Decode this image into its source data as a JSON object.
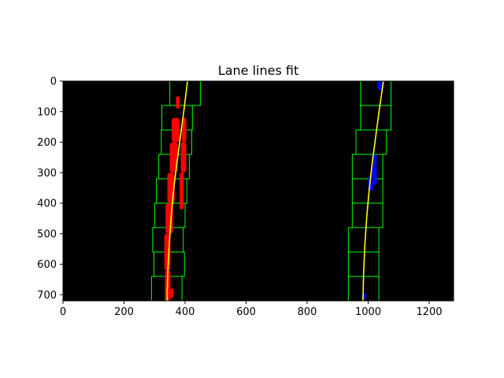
{
  "chart_data": {
    "type": "image",
    "title": "Lane lines fit",
    "xlim": [
      0,
      1280
    ],
    "ylim": [
      720,
      0
    ],
    "x_ticks": [
      0,
      200,
      400,
      600,
      800,
      1000,
      1200
    ],
    "y_ticks": [
      0,
      100,
      200,
      300,
      400,
      500,
      600,
      700
    ],
    "x_tick_labels": [
      "0",
      "200",
      "400",
      "600",
      "800",
      "1000",
      "1200"
    ],
    "y_tick_labels": [
      "0",
      "100",
      "200",
      "300",
      "400",
      "500",
      "600",
      "700"
    ],
    "colors": {
      "background": "#000000",
      "window": "#00ff00",
      "left_lane_pixels": "#ff0000",
      "right_lane_pixels": "#0000ff",
      "fit_line": "#ffff00"
    },
    "left_fit": {
      "points": [
        [
          408,
          0
        ],
        [
          397,
          90
        ],
        [
          385,
          180
        ],
        [
          373,
          270
        ],
        [
          362,
          360
        ],
        [
          354,
          450
        ],
        [
          348,
          540
        ],
        [
          343,
          630
        ],
        [
          341,
          720
        ]
      ]
    },
    "right_fit": {
      "points": [
        [
          1050,
          0
        ],
        [
          1037,
          90
        ],
        [
          1025,
          180
        ],
        [
          1013,
          270
        ],
        [
          1003,
          360
        ],
        [
          995,
          450
        ],
        [
          989,
          540
        ],
        [
          985,
          630
        ],
        [
          983,
          720
        ]
      ]
    },
    "left_windows": [
      {
        "x0": 290,
        "x1": 390,
        "y0": 640,
        "y1": 720
      },
      {
        "x0": 298,
        "x1": 398,
        "y0": 560,
        "y1": 640
      },
      {
        "x0": 294,
        "x1": 394,
        "y0": 480,
        "y1": 560
      },
      {
        "x0": 300,
        "x1": 400,
        "y0": 400,
        "y1": 480
      },
      {
        "x0": 306,
        "x1": 406,
        "y0": 320,
        "y1": 400
      },
      {
        "x0": 314,
        "x1": 414,
        "y0": 240,
        "y1": 320
      },
      {
        "x0": 322,
        "x1": 422,
        "y0": 160,
        "y1": 240
      },
      {
        "x0": 324,
        "x1": 424,
        "y0": 80,
        "y1": 160
      },
      {
        "x0": 350,
        "x1": 450,
        "y0": 0,
        "y1": 80
      }
    ],
    "right_windows": [
      {
        "x0": 935,
        "x1": 1035,
        "y0": 640,
        "y1": 720
      },
      {
        "x0": 935,
        "x1": 1035,
        "y0": 560,
        "y1": 640
      },
      {
        "x0": 935,
        "x1": 1035,
        "y0": 480,
        "y1": 560
      },
      {
        "x0": 948,
        "x1": 1048,
        "y0": 400,
        "y1": 480
      },
      {
        "x0": 948,
        "x1": 1048,
        "y0": 320,
        "y1": 400
      },
      {
        "x0": 948,
        "x1": 1048,
        "y0": 240,
        "y1": 320
      },
      {
        "x0": 960,
        "x1": 1060,
        "y0": 160,
        "y1": 240
      },
      {
        "x0": 975,
        "x1": 1075,
        "y0": 80,
        "y1": 160
      },
      {
        "x0": 975,
        "x1": 1075,
        "y0": 0,
        "y1": 80
      }
    ],
    "left_pixel_blobs": [
      {
        "x0": 334,
        "x1": 352,
        "y0": 620,
        "y1": 720
      },
      {
        "x0": 332,
        "x1": 352,
        "y0": 500,
        "y1": 620
      },
      {
        "x0": 336,
        "x1": 360,
        "y0": 400,
        "y1": 500
      },
      {
        "x0": 342,
        "x1": 366,
        "y0": 300,
        "y1": 400
      },
      {
        "x0": 350,
        "x1": 376,
        "y0": 200,
        "y1": 300
      },
      {
        "x0": 356,
        "x1": 382,
        "y0": 120,
        "y1": 200
      },
      {
        "x0": 382,
        "x1": 396,
        "y0": 300,
        "y1": 420
      },
      {
        "x0": 386,
        "x1": 404,
        "y0": 200,
        "y1": 300
      },
      {
        "x0": 390,
        "x1": 404,
        "y0": 120,
        "y1": 200
      },
      {
        "x0": 370,
        "x1": 382,
        "y0": 50,
        "y1": 90
      },
      {
        "x0": 352,
        "x1": 362,
        "y0": 680,
        "y1": 710
      }
    ],
    "right_pixel_blobs": [
      {
        "x0": 1012,
        "x1": 1028,
        "y0": 240,
        "y1": 340
      },
      {
        "x0": 1000,
        "x1": 1016,
        "y0": 310,
        "y1": 360
      },
      {
        "x0": 1030,
        "x1": 1046,
        "y0": 0,
        "y1": 30
      },
      {
        "x0": 978,
        "x1": 994,
        "y0": 695,
        "y1": 715
      }
    ]
  }
}
